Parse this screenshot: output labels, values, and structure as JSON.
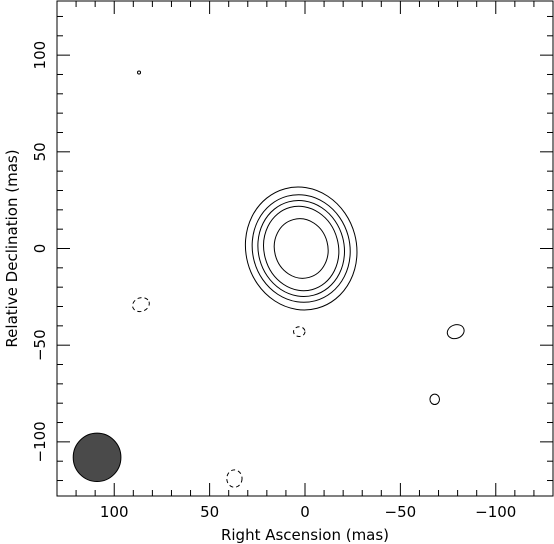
{
  "chart_data": {
    "type": "contour",
    "title": "",
    "xlabel": "Right Ascension  (mas)",
    "ylabel": "Relative Declination  (mas)",
    "xlim": [
      130,
      -130
    ],
    "ylim": [
      -128,
      128
    ],
    "x_ticks": [
      {
        "value": 100,
        "label": "100"
      },
      {
        "value": 50,
        "label": "50"
      },
      {
        "value": 0,
        "label": "0"
      },
      {
        "value": -50,
        "label": "−50"
      },
      {
        "value": -100,
        "label": "−100"
      }
    ],
    "y_ticks": [
      {
        "value": 100,
        "label": "100"
      },
      {
        "value": 50,
        "label": "50"
      },
      {
        "value": 0,
        "label": "0"
      },
      {
        "value": -50,
        "label": "−50"
      },
      {
        "value": -100,
        "label": "−100"
      }
    ],
    "minor_tick_step": 10,
    "grid": false,
    "contours": [
      {
        "level": 1,
        "cx": 2,
        "cy": 0,
        "rx": 29,
        "ry": 32,
        "angle": -15,
        "dashed": false
      },
      {
        "level": 2,
        "cx": 2,
        "cy": 0,
        "rx": 25.5,
        "ry": 28,
        "angle": -15,
        "dashed": false
      },
      {
        "level": 3,
        "cx": 2,
        "cy": 0,
        "rx": 22.5,
        "ry": 25,
        "angle": -15,
        "dashed": false
      },
      {
        "level": 4,
        "cx": 2,
        "cy": 0,
        "rx": 19.5,
        "ry": 22,
        "angle": -15,
        "dashed": false
      },
      {
        "level": 5,
        "cx": 2,
        "cy": 0,
        "rx": 14,
        "ry": 15.5,
        "angle": -15,
        "dashed": false
      }
    ],
    "noise_contours": [
      {
        "cx": 87,
        "cy": 91,
        "rx": 0.8,
        "ry": 0.8,
        "angle": 0,
        "dashed": false
      },
      {
        "cx": 86,
        "cy": -29,
        "rx": 4.5,
        "ry": 3.5,
        "angle": -20,
        "dashed": true
      },
      {
        "cx": 3,
        "cy": -43,
        "rx": 3,
        "ry": 2.5,
        "angle": 0,
        "dashed": true
      },
      {
        "cx": -79,
        "cy": -43,
        "rx": 4.5,
        "ry": 3.5,
        "angle": -20,
        "dashed": false
      },
      {
        "cx": -68,
        "cy": -78,
        "rx": 2.5,
        "ry": 2.7,
        "angle": 0,
        "dashed": false
      },
      {
        "cx": 37,
        "cy": -119,
        "rx": 4,
        "ry": 4.5,
        "angle": 0,
        "dashed": true
      }
    ],
    "beam": {
      "cx": 109,
      "cy": -108,
      "major": 12.5,
      "minor": 12.5,
      "angle": 0,
      "color": "#4a4a4a"
    },
    "colors": {
      "contour": "#000000",
      "frame": "#000000",
      "beam": "#4a4a4a"
    }
  }
}
